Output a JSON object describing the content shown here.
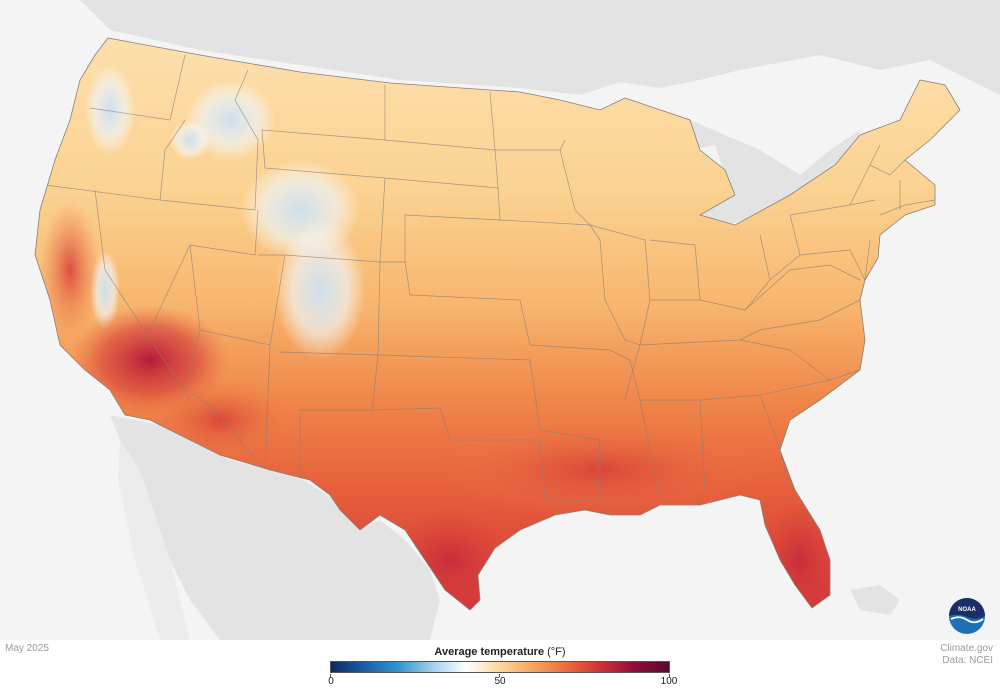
{
  "map": {
    "date_label": "May 2025",
    "credit_site": "Climate.gov",
    "credit_data": "Data: NCEI",
    "logo_text": "NOAA"
  },
  "legend": {
    "title_bold": "Average temperature",
    "title_unit": "(°F)",
    "min": 0,
    "mid": 50,
    "max": 100,
    "min_label": "0",
    "mid_label": "50",
    "max_label": "100",
    "colors": [
      "#0b2a5e",
      "#1c5ea8",
      "#2f95d0",
      "#9fd0ea",
      "#ffffff",
      "#fbd79b",
      "#f6a35e",
      "#ec6a3c",
      "#cf2f36",
      "#8e0d3b",
      "#5a0a2c"
    ]
  },
  "regions": {
    "hot": [
      "Texas",
      "Florida",
      "Arizona",
      "Southern California"
    ],
    "cool": [
      "Rocky Mountains",
      "Northern Rockies",
      "Cascades"
    ]
  }
}
